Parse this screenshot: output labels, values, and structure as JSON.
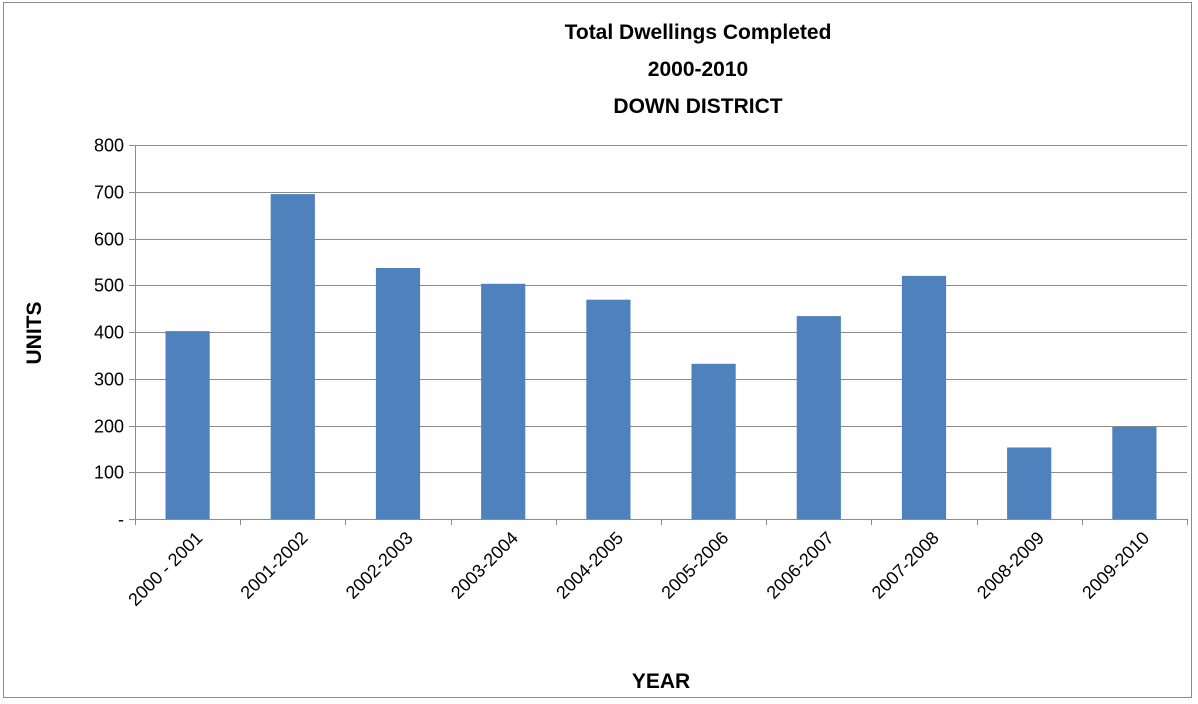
{
  "chart_data": {
    "type": "bar",
    "title_lines": [
      "Total Dwellings Completed",
      "2000-2010",
      "DOWN DISTRICT"
    ],
    "xlabel": "YEAR",
    "ylabel": "UNITS",
    "categories": [
      "2000 - 2001",
      "2001-2002",
      "2002-2003",
      "2003-2004",
      "2004-2005",
      "2005-2006",
      "2006-2007",
      "2007-2008",
      "2008-2009",
      "2009-2010"
    ],
    "values": [
      402,
      695,
      537,
      503,
      469,
      332,
      434,
      520,
      153,
      197
    ],
    "ylim": [
      0,
      800
    ],
    "yticks": [
      0,
      100,
      200,
      300,
      400,
      500,
      600,
      700,
      800
    ],
    "ytick_labels": [
      "-",
      "100",
      "200",
      "300",
      "400",
      "500",
      "600",
      "700",
      "800"
    ],
    "bar_color": "#4F81BD",
    "grid": "horizontal",
    "legend": "none"
  }
}
